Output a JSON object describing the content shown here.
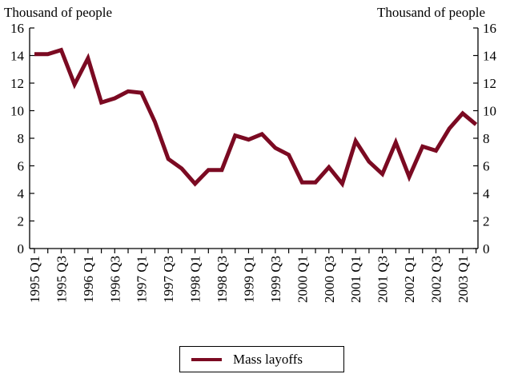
{
  "chart_data": {
    "type": "line",
    "y_unit_left": "Thousand of people",
    "y_unit_right": "Thousand of people",
    "ylim": [
      0,
      16
    ],
    "yticks": [
      0,
      2,
      4,
      6,
      8,
      10,
      12,
      14,
      16
    ],
    "grid": false,
    "legend_position": "bottom",
    "categories": [
      "1995 Q1",
      "1995 Q2",
      "1995 Q3",
      "1995 Q4",
      "1996 Q1",
      "1996 Q2",
      "1996 Q3",
      "1996 Q4",
      "1997 Q1",
      "1997 Q2",
      "1997 Q3",
      "1997 Q4",
      "1998 Q1",
      "1998 Q2",
      "1998 Q3",
      "1998 Q4",
      "1999 Q1",
      "1999 Q2",
      "1999 Q3",
      "1999 Q4",
      "2000 Q1",
      "2000 Q2",
      "2000 Q3",
      "2000 Q4",
      "2001 Q1",
      "2001 Q2",
      "2001 Q3",
      "2001 Q4",
      "2002 Q1",
      "2002 Q2",
      "2002 Q3",
      "2002 Q4",
      "2003 Q1",
      "2003 Q2"
    ],
    "tick_labels_shown": [
      "1995 Q1",
      "1995 Q3",
      "1996 Q1",
      "1996 Q3",
      "1997 Q1",
      "1997 Q3",
      "1998 Q1",
      "1998 Q3",
      "1999 Q1",
      "1999 Q3",
      "2000 Q1",
      "2000 Q3",
      "2001 Q1",
      "2001 Q3",
      "2002 Q1",
      "2002 Q3",
      "2003 Q1"
    ],
    "series": [
      {
        "name": "Mass layoffs",
        "color": "#7b0a22",
        "values": [
          14.1,
          14.1,
          14.4,
          11.9,
          13.8,
          10.6,
          10.9,
          11.4,
          11.3,
          9.2,
          6.5,
          5.8,
          4.7,
          5.7,
          5.7,
          8.2,
          7.9,
          8.3,
          7.3,
          6.8,
          4.8,
          4.8,
          5.9,
          4.7,
          7.8,
          6.3,
          5.4,
          7.7,
          5.2,
          7.4,
          7.1,
          8.7,
          9.8,
          9.0
        ]
      }
    ]
  }
}
